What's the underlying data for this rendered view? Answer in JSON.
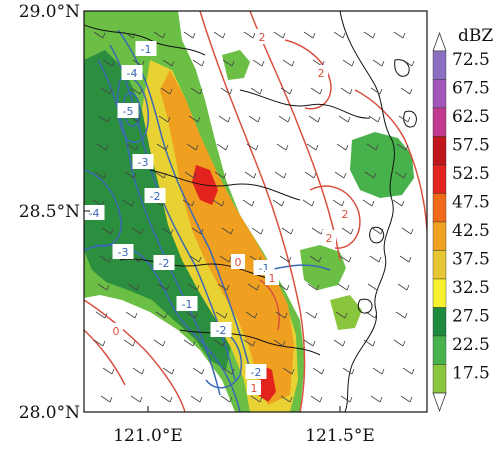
{
  "map": {
    "lat_ticks": [
      "29.0°N",
      "28.5°N",
      "28.0°N"
    ],
    "lon_ticks": [
      "121.0°E",
      "121.5°E"
    ],
    "lon_range": [
      120.8,
      121.8
    ],
    "lat_range": [
      28.0,
      29.0
    ]
  },
  "colorbar": {
    "title": "dBZ",
    "levels": [
      "72.5",
      "67.5",
      "62.5",
      "57.5",
      "52.5",
      "47.5",
      "42.5",
      "37.5",
      "32.5",
      "27.5",
      "22.5",
      "17.5"
    ],
    "colors": [
      "#8a6fc0",
      "#a256b8",
      "#c23a8f",
      "#c0161b",
      "#e2231e",
      "#f06a1a",
      "#f0a020",
      "#e6c633",
      "#f6f22e",
      "#1f8a3e",
      "#47b14b",
      "#8ac63d"
    ]
  },
  "contour_labels": {
    "blue": [
      "-1",
      "-4",
      "-5",
      "-3",
      "-2",
      "-4",
      "-3",
      "-2",
      "-1",
      "-1",
      "-2",
      "-2"
    ],
    "red": [
      "2",
      "2",
      "2",
      "2",
      "0",
      "1",
      "0",
      "1"
    ]
  },
  "colors": {
    "blue_contour": "#3a68b5",
    "red_contour": "#d9503f",
    "coastline": "#111111"
  }
}
